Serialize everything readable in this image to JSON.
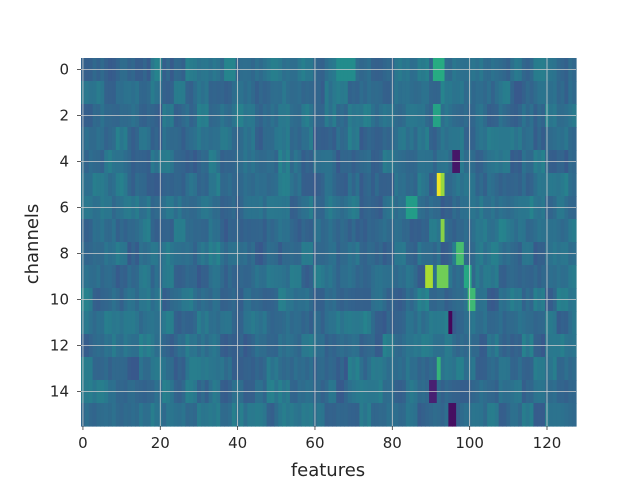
{
  "chart_data": {
    "type": "heatmap",
    "xlabel": "features",
    "ylabel": "channels",
    "n_rows": 16,
    "n_cols": 128,
    "xlim": [
      -0.5,
      127.5
    ],
    "ylim": [
      15.5,
      -0.5
    ],
    "x_ticks": [
      0,
      20,
      40,
      60,
      80,
      100,
      120
    ],
    "y_ticks": [
      0,
      2,
      4,
      6,
      8,
      10,
      12,
      14
    ],
    "grid": true,
    "colormap": "viridis",
    "colors": {
      "grid": "#cfcfcf",
      "background": "#ffffff",
      "text": "#262626"
    },
    "hotspots": [
      {
        "row": 0,
        "cols": [
          91,
          93
        ],
        "value": 0.62
      },
      {
        "row": 0,
        "cols": [
          66,
          70
        ],
        "value": 0.48
      },
      {
        "row": 0,
        "cols": [
          37,
          39
        ],
        "value": 0.45
      },
      {
        "row": 2,
        "cols": [
          91,
          92
        ],
        "value": 0.58
      },
      {
        "row": 4,
        "cols": [
          96,
          97
        ],
        "value": 0.08
      },
      {
        "row": 5,
        "cols": [
          92,
          92
        ],
        "value": 0.98
      },
      {
        "row": 5,
        "cols": [
          93,
          93
        ],
        "value": 0.85
      },
      {
        "row": 6,
        "cols": [
          84,
          86
        ],
        "value": 0.55
      },
      {
        "row": 7,
        "cols": [
          93,
          93
        ],
        "value": 0.82
      },
      {
        "row": 8,
        "cols": [
          97,
          98
        ],
        "value": 0.7
      },
      {
        "row": 9,
        "cols": [
          89,
          90
        ],
        "value": 0.88
      },
      {
        "row": 9,
        "cols": [
          92,
          94
        ],
        "value": 0.78
      },
      {
        "row": 9,
        "cols": [
          99,
          100
        ],
        "value": 0.6
      },
      {
        "row": 10,
        "cols": [
          100,
          101
        ],
        "value": 0.68
      },
      {
        "row": 11,
        "cols": [
          95,
          95
        ],
        "value": 0.02
      },
      {
        "row": 13,
        "cols": [
          92,
          92
        ],
        "value": 0.66
      },
      {
        "row": 14,
        "cols": [
          90,
          91
        ],
        "value": 0.12
      },
      {
        "row": 15,
        "cols": [
          95,
          96
        ],
        "value": 0.05
      }
    ]
  }
}
